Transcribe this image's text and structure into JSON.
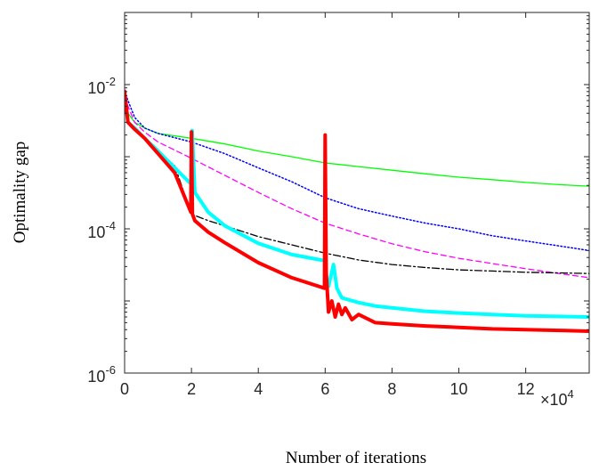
{
  "chart_data": {
    "type": "line",
    "xlabel": "Number of iterations",
    "ylabel": "Optimality gap",
    "x_multiplier": "×10",
    "x_multiplier_exp": "4",
    "xlim": [
      0,
      13.9
    ],
    "ylim_log10": [
      -6,
      -1
    ],
    "y_scale": "log",
    "grid": false,
    "x_ticks": [
      0,
      2,
      4,
      6,
      8,
      10,
      12
    ],
    "y_ticks": [
      {
        "base": "10",
        "exp": "-2",
        "log10": -2
      },
      {
        "base": "10",
        "exp": "-4",
        "log10": -4
      },
      {
        "base": "10",
        "exp": "-6",
        "log10": -6
      }
    ],
    "series": [
      {
        "color": "#00ff00",
        "style": "solid",
        "width": 1.3,
        "x": [
          0,
          0.1,
          0.3,
          0.6,
          1,
          2,
          3,
          4,
          5,
          6,
          7,
          8,
          9,
          10,
          11,
          12,
          13,
          13.9
        ],
        "y": [
          0.008,
          0.004,
          0.003,
          0.0025,
          0.0021,
          0.0018,
          0.0015,
          0.0012,
          0.001,
          0.00082,
          0.00073,
          0.00065,
          0.00058,
          0.00052,
          0.00048,
          0.00044,
          0.00041,
          0.00039
        ]
      },
      {
        "color": "#0000ff",
        "style": "dotted",
        "width": 1.5,
        "x": [
          0,
          0.1,
          0.3,
          0.6,
          1,
          2,
          3,
          4,
          5,
          6,
          7,
          8,
          9,
          10,
          11,
          12,
          13,
          13.9
        ],
        "y": [
          0.008,
          0.006,
          0.0035,
          0.0025,
          0.0021,
          0.0016,
          0.0011,
          0.0007,
          0.00045,
          0.00027,
          0.00019,
          0.00015,
          0.00012,
          0.0001,
          8e-05,
          6.8e-05,
          5.8e-05,
          5e-05
        ]
      },
      {
        "color": "#ff00ff",
        "style": "dashed",
        "width": 1.3,
        "x": [
          0,
          0.1,
          0.3,
          0.6,
          1,
          2,
          3,
          4,
          5,
          6,
          7,
          8,
          9,
          10,
          11,
          12,
          13,
          13.9
        ],
        "y": [
          0.007,
          0.005,
          0.003,
          0.0022,
          0.0016,
          0.00095,
          0.00055,
          0.00032,
          0.00019,
          0.00012,
          8.5e-05,
          6.2e-05,
          4.8e-05,
          3.9e-05,
          3.3e-05,
          2.8e-05,
          2.4e-05,
          2.1e-05
        ]
      },
      {
        "color": "#000000",
        "style": "dashdot",
        "width": 1.3,
        "x": [
          0,
          0.1,
          0.3,
          0.6,
          1,
          1.5,
          2,
          2.5,
          3,
          4,
          5,
          6,
          7,
          8,
          9,
          10,
          11,
          12,
          13,
          13.9
        ],
        "y": [
          0.006,
          0.003,
          0.0024,
          0.0018,
          0.0012,
          0.00075,
          0.00016,
          0.00013,
          0.00011,
          7.8e-05,
          6e-05,
          4.6e-05,
          3.7e-05,
          3.2e-05,
          2.9e-05,
          2.7e-05,
          2.6e-05,
          2.5e-05,
          2.45e-05,
          2.4e-05
        ]
      },
      {
        "color": "#00ffff",
        "style": "solid",
        "width": 4,
        "x": [
          0,
          0.1,
          0.3,
          0.6,
          1,
          1.5,
          1.98,
          2.02,
          2.1,
          2.5,
          3,
          4,
          5,
          6,
          6.02,
          6.1,
          6.25,
          6.35,
          6.5,
          7,
          7.5,
          8,
          9,
          10,
          11,
          12,
          13,
          13.9
        ],
        "y": [
          0.007,
          0.003,
          0.0025,
          0.0018,
          0.0012,
          0.0007,
          0.00042,
          0.0023,
          0.00032,
          0.00017,
          0.00011,
          6.3e-05,
          4.4e-05,
          3.6e-05,
          2.1e-05,
          1.6e-05,
          3.2e-05,
          1.5e-05,
          1.1e-05,
          9.5e-06,
          8.5e-06,
          8e-06,
          7.2e-06,
          6.8e-06,
          6.5e-06,
          6.2e-06,
          6.1e-06,
          6e-06
        ]
      },
      {
        "color": "#ff0000",
        "style": "solid",
        "width": 4,
        "x": [
          0,
          0.1,
          0.3,
          0.6,
          1,
          1.5,
          1.98,
          2.0,
          2.03,
          2.1,
          2.5,
          3,
          4,
          5,
          5.98,
          6.0,
          6.03,
          6.1,
          6.2,
          6.3,
          6.4,
          6.5,
          6.6,
          6.8,
          7,
          7.5,
          8,
          9,
          10,
          11,
          12,
          13,
          13.9
        ],
        "y": [
          0.008,
          0.003,
          0.0024,
          0.0018,
          0.0011,
          0.0006,
          0.00017,
          0.0022,
          0.00016,
          0.00013,
          9e-05,
          6.4e-05,
          3.4e-05,
          2.1e-05,
          1.5e-05,
          0.002,
          2.5e-05,
          7e-06,
          1e-05,
          6e-06,
          9e-06,
          6.5e-06,
          8e-06,
          5.5e-06,
          6.5e-06,
          5e-06,
          4.8e-06,
          4.5e-06,
          4.3e-06,
          4.1e-06,
          4e-06,
          3.9e-06,
          3.8e-06
        ]
      }
    ]
  }
}
